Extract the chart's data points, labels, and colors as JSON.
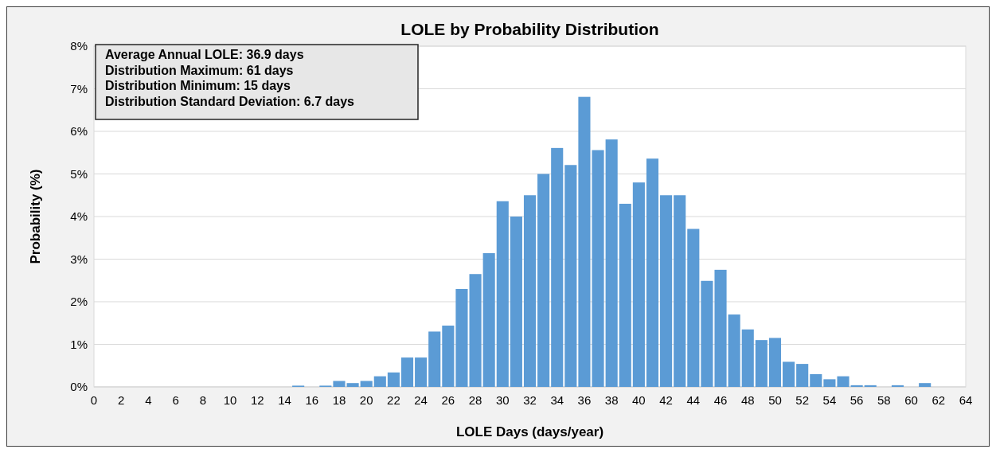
{
  "chart_data": {
    "type": "histogram",
    "title": "LOLE by Probability Distribution",
    "xlabel": "LOLE Days (days/year)",
    "ylabel": "Probability (%)",
    "annotations": [
      "Average Annual LOLE: 36.9 days",
      "Distribution Maximum: 61 days",
      "Distribution Minimum: 15 days",
      "Distribution Standard Deviation: 6.7 days"
    ],
    "bins": [
      14.5,
      15.5,
      16.5,
      17.5,
      18.5,
      19.5,
      20.5,
      21.5,
      22.5,
      23.5,
      24.5,
      25.5,
      26.5,
      27.5,
      28.5,
      29.5,
      30.5,
      31.5,
      32.5,
      33.5,
      34.5,
      35.5,
      36.5,
      37.5,
      38.5,
      39.5,
      40.5,
      41.5,
      42.5,
      43.5,
      44.5,
      45.5,
      46.5,
      47.5,
      48.5,
      49.5,
      50.5,
      51.5,
      52.5,
      53.5,
      54.5,
      55.5,
      56.5,
      57.5,
      58.5,
      59.5,
      60.5,
      61.5
    ],
    "values": [
      0.03,
      0,
      0.03,
      0.14,
      0.09,
      0.14,
      0.25,
      0.34,
      0.69,
      0.69,
      1.3,
      1.44,
      2.3,
      2.65,
      3.14,
      4.36,
      4.0,
      4.5,
      5.0,
      5.61,
      5.21,
      6.81,
      5.56,
      5.81,
      4.3,
      4.8,
      5.36,
      4.5,
      4.5,
      3.71,
      2.49,
      2.75,
      1.7,
      1.35,
      1.1,
      1.15,
      0.59,
      0.54,
      0.3,
      0.18,
      0.25,
      0.04,
      0.04,
      0,
      0.04,
      0,
      0.09
    ],
    "color": "#5b9bd5",
    "xlim": [
      0,
      64
    ],
    "xticks": [
      0,
      2,
      4,
      6,
      8,
      10,
      12,
      14,
      16,
      18,
      20,
      22,
      24,
      26,
      28,
      30,
      32,
      34,
      36,
      38,
      40,
      42,
      44,
      46,
      48,
      50,
      52,
      54,
      56,
      58,
      60,
      62,
      64
    ],
    "ylim": [
      0,
      8
    ],
    "yticks": [
      {
        "value": 0,
        "label": "0%"
      },
      {
        "value": 1,
        "label": "1%"
      },
      {
        "value": 2,
        "label": "2%"
      },
      {
        "value": 3,
        "label": "3%"
      },
      {
        "value": 4,
        "label": "4%"
      },
      {
        "value": 5,
        "label": "5%"
      },
      {
        "value": 6,
        "label": "6%"
      },
      {
        "value": 7,
        "label": "7%"
      },
      {
        "value": 8,
        "label": "8%"
      }
    ],
    "grid": "y"
  }
}
